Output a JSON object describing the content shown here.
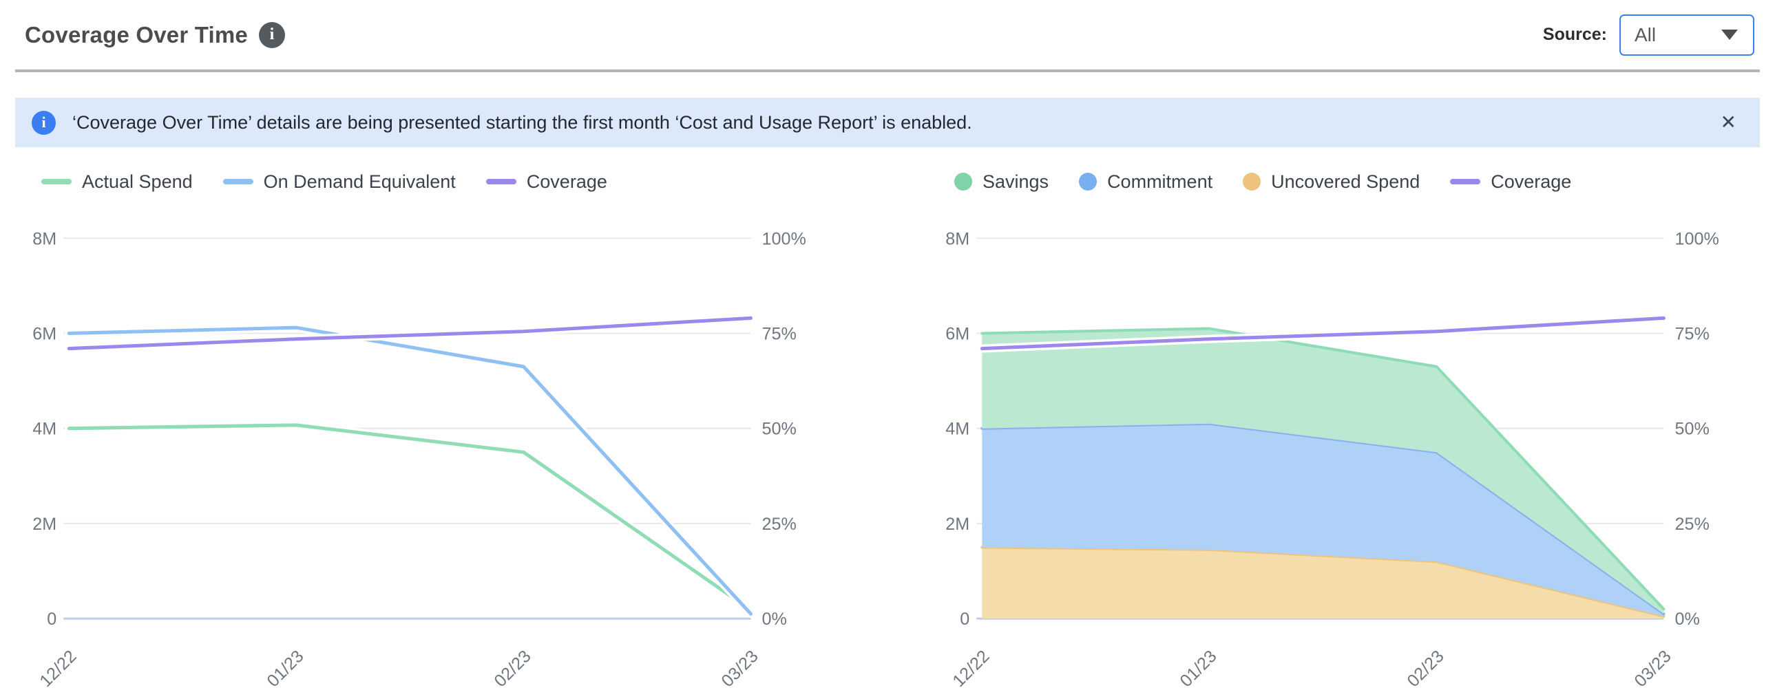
{
  "header": {
    "title": "Coverage Over Time",
    "source_label": "Source:",
    "source_value": "All"
  },
  "banner": {
    "text": "‘Coverage Over Time’ details are being presented starting the first month ‘Cost and Usage Report’ is enabled.",
    "close_label": "✕"
  },
  "colors": {
    "accent_blue": "#3c7ff0",
    "banner_bg": "#dbe9fb",
    "banner_icon": "#3b7ef1",
    "gridline": "#e8e8eb",
    "axis_line": "#bfcaec",
    "axis_text": "#70767f",
    "actual_spend": "#8fdcb5",
    "on_demand_equivalent": "#8fc0f3",
    "coverage": "#9c88ec",
    "savings_fill": "#bae8d0",
    "commitment_fill": "#afd1f7",
    "uncovered_fill": "#f5dcab"
  },
  "chart_data": [
    {
      "type": "line",
      "title": "Spend vs On Demand Equivalent",
      "categories": [
        "12/22",
        "01/23",
        "02/23",
        "03/23"
      ],
      "values_unit": "millions (left axis) / percent (right axis)",
      "left_axis": {
        "ticks": [
          "8M",
          "6M",
          "4M",
          "2M",
          "0"
        ],
        "tick_values": [
          8,
          6,
          4,
          2,
          0
        ],
        "range": [
          0,
          8
        ]
      },
      "right_axis": {
        "ticks": [
          "100%",
          "75%",
          "50%",
          "25%",
          "0%"
        ],
        "tick_values": [
          100,
          75,
          50,
          25,
          0
        ],
        "range": [
          0,
          100
        ]
      },
      "grid": true,
      "legend_position": "top-left",
      "line_series": [
        {
          "name": "Actual Spend",
          "axis": "left",
          "color": "#8fdcb5",
          "values": [
            4.0,
            4.07,
            3.5,
            0.18
          ]
        },
        {
          "name": "On Demand Equivalent",
          "axis": "left",
          "color": "#8fc0f3",
          "values": [
            6.0,
            6.12,
            5.3,
            0.1
          ]
        },
        {
          "name": "Coverage",
          "axis": "right",
          "color": "#9c88ec",
          "values": [
            71,
            73.5,
            75.5,
            79
          ]
        }
      ],
      "legend": [
        {
          "label": "Actual Spend",
          "swatch": "line",
          "color": "#8fdcb5"
        },
        {
          "label": "On Demand Equivalent",
          "swatch": "line",
          "color": "#8fc0f3"
        },
        {
          "label": "Coverage",
          "swatch": "line",
          "color": "#9c88ec"
        }
      ]
    },
    {
      "type": "area",
      "title": "Savings / Commitment / Uncovered Spend (stacked)",
      "categories": [
        "12/22",
        "01/23",
        "02/23",
        "03/23"
      ],
      "values_unit": "millions (left axis) / percent (right axis)",
      "left_axis": {
        "ticks": [
          "8M",
          "6M",
          "4M",
          "2M",
          "0"
        ],
        "tick_values": [
          8,
          6,
          4,
          2,
          0
        ],
        "range": [
          0,
          8
        ]
      },
      "right_axis": {
        "ticks": [
          "100%",
          "75%",
          "50%",
          "25%",
          "0%"
        ],
        "tick_values": [
          100,
          75,
          50,
          25,
          0
        ],
        "range": [
          0,
          100
        ]
      },
      "grid": true,
      "legend_position": "top-left",
      "stacked_series": [
        {
          "name": "Uncovered Spend",
          "fill": "#f5dcab",
          "stroke": "#edc37e",
          "values": [
            1.5,
            1.45,
            1.2,
            0.05
          ]
        },
        {
          "name": "Commitment",
          "fill": "#afd1f7",
          "stroke": "#86b0ee",
          "values": [
            2.5,
            2.65,
            2.3,
            0.05
          ]
        },
        {
          "name": "Savings",
          "fill": "#bae8d0",
          "stroke": "#8edcb6",
          "values": [
            2.0,
            2.0,
            1.8,
            0.1
          ]
        }
      ],
      "line_series": [
        {
          "name": "Coverage",
          "axis": "right",
          "color": "#9c88ec",
          "values": [
            71,
            73.5,
            75.5,
            79
          ]
        }
      ],
      "legend": [
        {
          "label": "Savings",
          "swatch": "dot",
          "color": "#80d3a9"
        },
        {
          "label": "Commitment",
          "swatch": "dot",
          "color": "#79aff0"
        },
        {
          "label": "Uncovered Spend",
          "swatch": "dot",
          "color": "#eec37d"
        },
        {
          "label": "Coverage",
          "swatch": "line",
          "color": "#9c88ec"
        }
      ]
    }
  ]
}
